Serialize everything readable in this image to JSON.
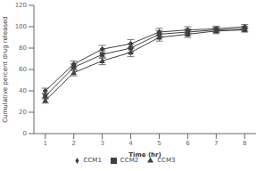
{
  "chart_data": {
    "type": "line",
    "xlabel": "Time (hr)",
    "ylabel": "Cumulative percent drug released",
    "x": [
      1,
      2,
      3,
      4,
      5,
      6,
      7,
      8
    ],
    "xlim": [
      0.6,
      8.4
    ],
    "xticks": [
      1,
      2,
      3,
      4,
      5,
      6,
      7,
      8
    ],
    "ylim": [
      0,
      120
    ],
    "yticks": [
      0,
      20,
      40,
      60,
      80,
      100,
      120
    ],
    "grid": false,
    "legend": "bottom",
    "series": [
      {
        "name": "CCM1",
        "color": "#404040",
        "marker": "diamond",
        "values": [
          40,
          65,
          79,
          84,
          95,
          97,
          98,
          100
        ],
        "errors": [
          2.5,
          3.0,
          3.5,
          4.0,
          3.5,
          3.0,
          2.5,
          2.0
        ]
      },
      {
        "name": "CCM2",
        "color": "#404040",
        "marker": "square",
        "values": [
          35,
          62,
          74,
          80,
          93,
          95,
          97,
          98
        ],
        "errors": [
          2.5,
          3.0,
          3.5,
          4.0,
          3.5,
          3.0,
          2.5,
          2.0
        ]
      },
      {
        "name": "CCM3",
        "color": "#404040",
        "marker": "triangle",
        "values": [
          31,
          57,
          68,
          76,
          90,
          93,
          96,
          97
        ],
        "errors": [
          2.5,
          3.0,
          3.5,
          4.0,
          3.5,
          3.0,
          2.5,
          2.0
        ]
      }
    ]
  }
}
